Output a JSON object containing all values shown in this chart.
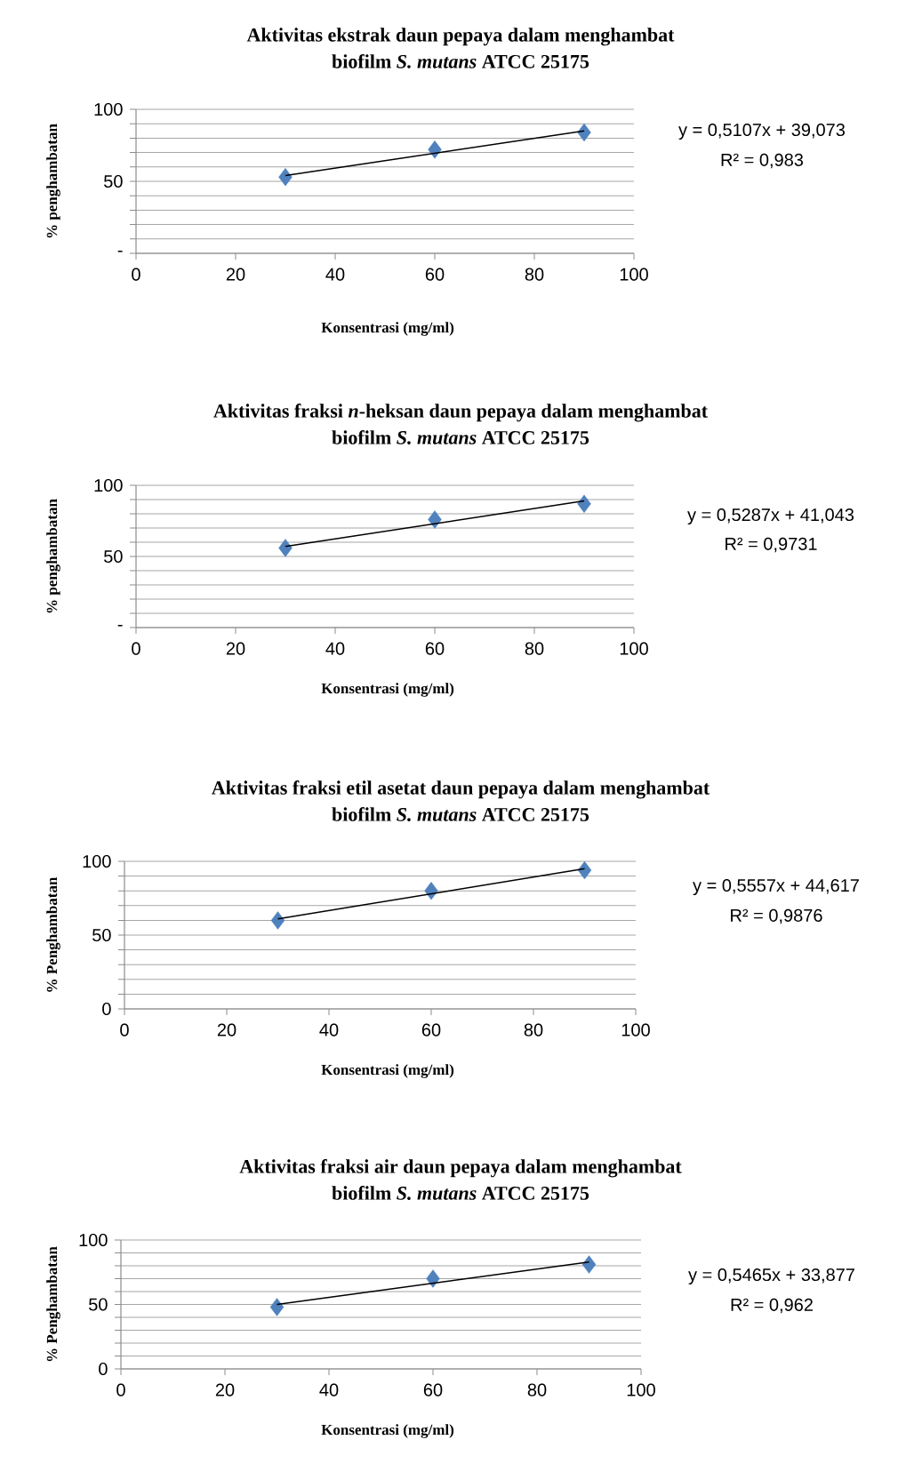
{
  "chart_data": [
    {
      "type": "scatter",
      "title": "Aktivitas ekstrak daun pepaya dalam menghambat",
      "subtitle": "biofilm *S. mutans* ATCC 25175",
      "xlabel": "Konsentrasi (mg/ml)",
      "ylabel": "% penghambatan",
      "xlim": [
        0,
        100
      ],
      "xticks": [
        0,
        20,
        40,
        60,
        80,
        100
      ],
      "ylim": [
        0,
        100
      ],
      "yticks": [
        {
          "value": 0,
          "label": "-"
        },
        {
          "value": 10,
          "label": null
        },
        {
          "value": 20,
          "label": null
        },
        {
          "value": 30,
          "label": null
        },
        {
          "value": 40,
          "label": null
        },
        50,
        {
          "value": 60,
          "label": null
        },
        {
          "value": 70,
          "label": null
        },
        {
          "value": 80,
          "label": null
        },
        {
          "value": 90,
          "label": null
        },
        100
      ],
      "grid": "y",
      "series": [
        {
          "color": "#4f81bd",
          "marker": "diamond",
          "x": [
            30,
            60,
            90
          ],
          "values": [
            53,
            72,
            84
          ]
        },
        {
          "type": "line",
          "color": "#000000",
          "marker": "none",
          "x": [
            30,
            90
          ],
          "values": [
            54,
            85
          ]
        }
      ],
      "annotations": [
        "y = 0,5107x + 39,073",
        "R² = 0,983"
      ]
    },
    {
      "type": "scatter",
      "title": "Aktivitas fraksi *n*-heksan daun pepaya dalam menghambat",
      "subtitle": "biofilm *S. mutans* ATCC 25175",
      "xlabel": "Konsentrasi (mg/ml)",
      "ylabel": "% penghambatan",
      "xlim": [
        0,
        100
      ],
      "xticks": [
        0,
        20,
        40,
        60,
        80,
        100
      ],
      "ylim": [
        0,
        100
      ],
      "yticks": [
        {
          "value": 0,
          "label": "-"
        },
        {
          "value": 10,
          "label": null
        },
        {
          "value": 20,
          "label": null
        },
        {
          "value": 30,
          "label": null
        },
        {
          "value": 40,
          "label": null
        },
        50,
        {
          "value": 60,
          "label": null
        },
        {
          "value": 70,
          "label": null
        },
        {
          "value": 80,
          "label": null
        },
        {
          "value": 90,
          "label": null
        },
        100
      ],
      "grid": "y",
      "series": [
        {
          "color": "#4f81bd",
          "marker": "diamond",
          "x": [
            30,
            60,
            90
          ],
          "values": [
            56,
            76,
            87
          ]
        },
        {
          "type": "line",
          "color": "#000000",
          "marker": "none",
          "x": [
            30,
            90
          ],
          "values": [
            57,
            89
          ]
        }
      ],
      "annotations": [
        "y = 0,5287x + 41,043",
        "R² = 0,9731"
      ]
    },
    {
      "type": "scatter",
      "title": "Aktivitas fraksi etil asetat daun pepaya dalam menghambat",
      "subtitle": "biofilm *S. mutans* ATCC 25175",
      "xlabel": "Konsentrasi (mg/ml)",
      "ylabel": "% Penghambatan",
      "xlim": [
        0,
        100
      ],
      "xticks": [
        0,
        20,
        40,
        60,
        80,
        100
      ],
      "ylim": [
        0,
        100
      ],
      "yticks": [
        0,
        {
          "value": 10,
          "label": null
        },
        {
          "value": 20,
          "label": null
        },
        {
          "value": 30,
          "label": null
        },
        {
          "value": 40,
          "label": null
        },
        50,
        {
          "value": 60,
          "label": null
        },
        {
          "value": 70,
          "label": null
        },
        {
          "value": 80,
          "label": null
        },
        {
          "value": 90,
          "label": null
        },
        100
      ],
      "grid": "y",
      "series": [
        {
          "color": "#4f81bd",
          "marker": "diamond",
          "x": [
            30,
            60,
            90
          ],
          "values": [
            60,
            80,
            94
          ]
        },
        {
          "type": "line",
          "color": "#000000",
          "marker": "none",
          "x": [
            30,
            90
          ],
          "values": [
            61,
            95
          ]
        }
      ],
      "annotations": [
        "y = 0,5557x + 44,617",
        "R² = 0,9876"
      ]
    },
    {
      "type": "scatter",
      "title": "Aktivitas fraksi air daun pepaya dalam menghambat",
      "subtitle": "biofilm *S. mutans* ATCC 25175",
      "xlabel": "Konsentrasi (mg/ml)",
      "ylabel": "% Penghambatan",
      "xlim": [
        0,
        100
      ],
      "xticks": [
        0,
        20,
        40,
        60,
        80,
        100
      ],
      "ylim": [
        0,
        100
      ],
      "yticks": [
        0,
        {
          "value": 10,
          "label": null
        },
        {
          "value": 20,
          "label": null
        },
        {
          "value": 30,
          "label": null
        },
        {
          "value": 40,
          "label": null
        },
        50,
        {
          "value": 60,
          "label": null
        },
        {
          "value": 70,
          "label": null
        },
        {
          "value": 80,
          "label": null
        },
        {
          "value": 90,
          "label": null
        },
        100
      ],
      "grid": "y",
      "series": [
        {
          "color": "#4f81bd",
          "marker": "diamond",
          "x": [
            30,
            60,
            90
          ],
          "values": [
            48,
            70,
            81
          ]
        },
        {
          "type": "line",
          "color": "#000000",
          "marker": "none",
          "x": [
            30,
            90
          ],
          "values": [
            50,
            83
          ]
        }
      ],
      "annotations": [
        "y = 0,5465x + 33,877",
        "R² = 0,962"
      ]
    }
  ]
}
